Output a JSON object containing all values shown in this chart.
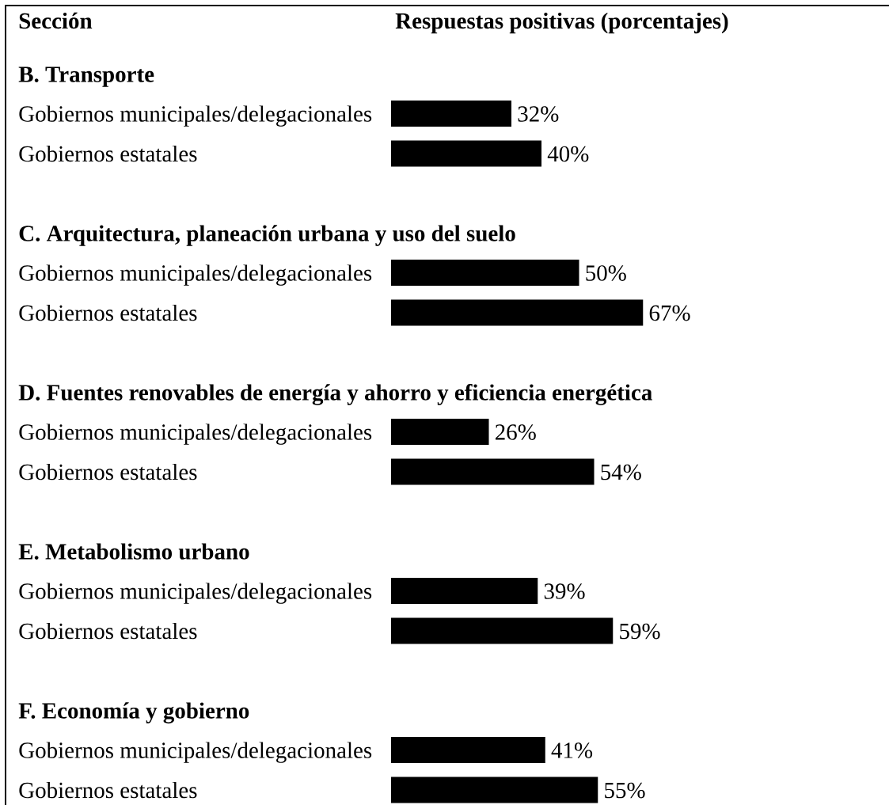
{
  "chart_data": [
    {
      "type": "bar",
      "orientation": "horizontal",
      "title": "B. Transporte",
      "xlabel": "Respuestas positivas (porcentajes)",
      "ylabel": "Sección",
      "categories": [
        "Gobiernos municipales/delegacionales",
        "Gobiernos estatales"
      ],
      "values": [
        32,
        40
      ],
      "value_labels": [
        "32%",
        "40%"
      ],
      "color": "#000000",
      "tick_labels": "y"
    },
    {
      "type": "bar",
      "orientation": "horizontal",
      "title": "C. Arquitectura, planeación urbana y uso del suelo",
      "categories": [
        "Gobiernos municipales/delegacionales",
        "Gobiernos estatales"
      ],
      "values": [
        50,
        67
      ],
      "value_labels": [
        "50%",
        "67%"
      ],
      "color": "#000000",
      "tick_labels": "y"
    },
    {
      "type": "bar",
      "orientation": "horizontal",
      "title": "D. Fuentes renovables de energía y ahorro y eficiencia energética",
      "categories": [
        "Gobiernos municipales/delegacionales",
        "Gobiernos estatales"
      ],
      "values": [
        26,
        54
      ],
      "value_labels": [
        "26%",
        "54%"
      ],
      "color": "#000000",
      "tick_labels": "y"
    },
    {
      "type": "bar",
      "orientation": "horizontal",
      "title": "E. Metabolismo urbano",
      "categories": [
        "Gobiernos municipales/delegacionales",
        "Gobiernos estatales"
      ],
      "values": [
        39,
        59
      ],
      "value_labels": [
        "39%",
        "59%"
      ],
      "color": "#000000",
      "tick_labels": "y"
    },
    {
      "type": "bar",
      "orientation": "horizontal",
      "title": "F. Economía y gobierno",
      "categories": [
        "Gobiernos municipales/delegacionales",
        "Gobiernos estatales"
      ],
      "values": [
        41,
        55
      ],
      "value_labels": [
        "41%",
        "55%"
      ],
      "color": "#000000",
      "tick_labels": "y"
    }
  ]
}
